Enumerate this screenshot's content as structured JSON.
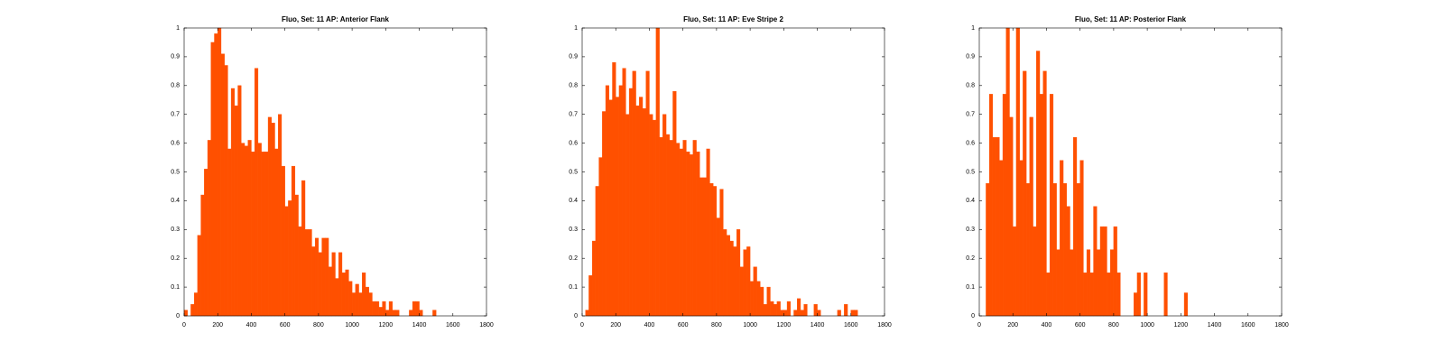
{
  "chart_data": [
    {
      "type": "histogram",
      "title": "Fluo, Set: 11 AP: Anterior Flank",
      "color": "#ff5000",
      "bins": [
        0,
        20,
        40,
        60,
        80,
        100,
        120,
        140,
        160,
        180,
        200,
        220,
        240,
        260,
        280,
        300,
        320,
        340,
        360,
        380,
        400,
        420,
        440,
        460,
        480,
        500,
        520,
        540,
        560,
        580,
        600,
        620,
        640,
        660,
        680,
        700,
        720,
        740,
        760,
        780,
        800,
        820,
        840,
        860,
        880,
        900,
        920,
        940,
        960,
        980,
        1000,
        1020,
        1040,
        1060,
        1080,
        1100,
        1120,
        1140,
        1160,
        1180,
        1200,
        1220,
        1240,
        1260,
        1280,
        1300,
        1320,
        1340,
        1360,
        1380,
        1400,
        1420,
        1440,
        1460,
        1480,
        1500,
        1520,
        1540,
        1560,
        1580,
        1600,
        1620,
        1640,
        1660,
        1680,
        1700,
        1720,
        1740,
        1760,
        1780,
        1800
      ],
      "values": [
        0.02,
        0,
        0.04,
        0.08,
        0.28,
        0.42,
        0.51,
        0.61,
        0.95,
        0.98,
        1,
        0.91,
        0.87,
        0.58,
        0.79,
        0.73,
        0.8,
        0.6,
        0.59,
        0.61,
        0.57,
        0.86,
        0.6,
        0.57,
        0.57,
        0.69,
        0.67,
        0.58,
        0.7,
        0.52,
        0.38,
        0.4,
        0.52,
        0.42,
        0.31,
        0.47,
        0.3,
        0.3,
        0.24,
        0.27,
        0.22,
        0.27,
        0.27,
        0.17,
        0.22,
        0.13,
        0.22,
        0.15,
        0.16,
        0.12,
        0.08,
        0.11,
        0.08,
        0.15,
        0.1,
        0.08,
        0.05,
        0.05,
        0.03,
        0.05,
        0.02,
        0.05,
        0.02,
        0.02,
        0,
        0,
        0,
        0.02,
        0.05,
        0.05,
        0.02,
        0,
        0,
        0,
        0.02,
        0,
        0,
        0,
        0,
        0,
        0,
        0,
        0,
        0,
        0,
        0,
        0,
        0,
        0,
        0
      ],
      "xlim": [
        0,
        1800
      ],
      "xticks": [
        0,
        200,
        400,
        600,
        800,
        1000,
        1200,
        1400,
        1600,
        1800
      ],
      "ylim": [
        0,
        1
      ],
      "yticks": [
        0,
        0.1,
        0.2,
        0.3,
        0.4,
        0.5,
        0.6,
        0.7,
        0.8,
        0.9,
        1
      ]
    },
    {
      "type": "histogram",
      "title": "Fluo, Set: 11 AP: Eve Stripe 2",
      "color": "#ff5000",
      "bins": [
        0,
        20,
        40,
        60,
        80,
        100,
        120,
        140,
        160,
        180,
        200,
        220,
        240,
        260,
        280,
        300,
        320,
        340,
        360,
        380,
        400,
        420,
        440,
        460,
        480,
        500,
        520,
        540,
        560,
        580,
        600,
        620,
        640,
        660,
        680,
        700,
        720,
        740,
        760,
        780,
        800,
        820,
        840,
        860,
        880,
        900,
        920,
        940,
        960,
        980,
        1000,
        1020,
        1040,
        1060,
        1080,
        1100,
        1120,
        1140,
        1160,
        1180,
        1200,
        1220,
        1240,
        1260,
        1280,
        1300,
        1320,
        1340,
        1360,
        1380,
        1400,
        1420,
        1440,
        1460,
        1480,
        1500,
        1520,
        1540,
        1560,
        1580,
        1600,
        1620,
        1640,
        1660,
        1680,
        1700,
        1720,
        1740,
        1760,
        1780,
        1800
      ],
      "values": [
        0,
        0.02,
        0.14,
        0.26,
        0.45,
        0.55,
        0.71,
        0.8,
        0.75,
        0.88,
        0.76,
        0.8,
        0.86,
        0.7,
        0.79,
        0.85,
        0.73,
        0.76,
        0.72,
        0.85,
        0.7,
        0.68,
        1,
        0.62,
        0.7,
        0.63,
        0.61,
        0.78,
        0.6,
        0.58,
        0.61,
        0.57,
        0.56,
        0.61,
        0.57,
        0.48,
        0.48,
        0.58,
        0.46,
        0.45,
        0.34,
        0.44,
        0.3,
        0.28,
        0.26,
        0.24,
        0.3,
        0.17,
        0.23,
        0.24,
        0.12,
        0.17,
        0.12,
        0.1,
        0.04,
        0.1,
        0.05,
        0.04,
        0.05,
        0.02,
        0.02,
        0.05,
        0,
        0.02,
        0.06,
        0.02,
        0.04,
        0,
        0,
        0.04,
        0.02,
        0,
        0,
        0,
        0,
        0,
        0.02,
        0,
        0.04,
        0,
        0.02,
        0.02,
        0,
        0,
        0,
        0,
        0,
        0,
        0,
        0
      ],
      "xlim": [
        0,
        1800
      ],
      "xticks": [
        0,
        200,
        400,
        600,
        800,
        1000,
        1200,
        1400,
        1600,
        1800
      ],
      "ylim": [
        0,
        1
      ],
      "yticks": [
        0,
        0.1,
        0.2,
        0.3,
        0.4,
        0.5,
        0.6,
        0.7,
        0.8,
        0.9,
        1
      ]
    },
    {
      "type": "histogram",
      "title": "Fluo, Set: 11 AP: Posterior Flank",
      "color": "#ff5000",
      "bins": [
        0,
        20,
        40,
        60,
        80,
        100,
        120,
        140,
        160,
        180,
        200,
        220,
        240,
        260,
        280,
        300,
        320,
        340,
        360,
        380,
        400,
        420,
        440,
        460,
        480,
        500,
        520,
        540,
        560,
        580,
        600,
        620,
        640,
        660,
        680,
        700,
        720,
        740,
        760,
        780,
        800,
        820,
        840,
        860,
        880,
        900,
        920,
        940,
        960,
        980,
        1000,
        1020,
        1040,
        1060,
        1080,
        1100,
        1120,
        1140,
        1160,
        1180,
        1200,
        1220,
        1240,
        1260,
        1280,
        1300,
        1320,
        1340,
        1360,
        1380,
        1400,
        1420,
        1440,
        1460,
        1480,
        1500,
        1520,
        1540,
        1560,
        1580,
        1600,
        1620,
        1640,
        1660,
        1680,
        1700,
        1720,
        1740,
        1760,
        1780,
        1800
      ],
      "values": [
        0,
        0,
        0.46,
        0.77,
        0.62,
        0.62,
        0.54,
        0.77,
        1,
        0.69,
        0.31,
        1,
        0.54,
        0.85,
        0.46,
        0.69,
        0.31,
        0.92,
        0.77,
        0.85,
        0.15,
        0.77,
        0.46,
        0.23,
        0.54,
        0.46,
        0.38,
        0.23,
        0.62,
        0.46,
        0.54,
        0.15,
        0.23,
        0.15,
        0.38,
        0.23,
        0.31,
        0.31,
        0.15,
        0.23,
        0.31,
        0.15,
        0,
        0,
        0,
        0,
        0.08,
        0.15,
        0,
        0.15,
        0,
        0,
        0,
        0,
        0,
        0.15,
        0,
        0,
        0,
        0,
        0,
        0.08,
        0,
        0,
        0,
        0,
        0,
        0,
        0,
        0,
        0,
        0,
        0,
        0,
        0,
        0,
        0,
        0,
        0,
        0,
        0,
        0,
        0,
        0,
        0,
        0,
        0,
        0,
        0,
        0
      ],
      "xlim": [
        0,
        1800
      ],
      "xticks": [
        0,
        200,
        400,
        600,
        800,
        1000,
        1200,
        1400,
        1600,
        1800
      ],
      "ylim": [
        0,
        1
      ],
      "yticks": [
        0,
        0.1,
        0.2,
        0.3,
        0.4,
        0.5,
        0.6,
        0.7,
        0.8,
        0.9,
        1
      ]
    }
  ]
}
